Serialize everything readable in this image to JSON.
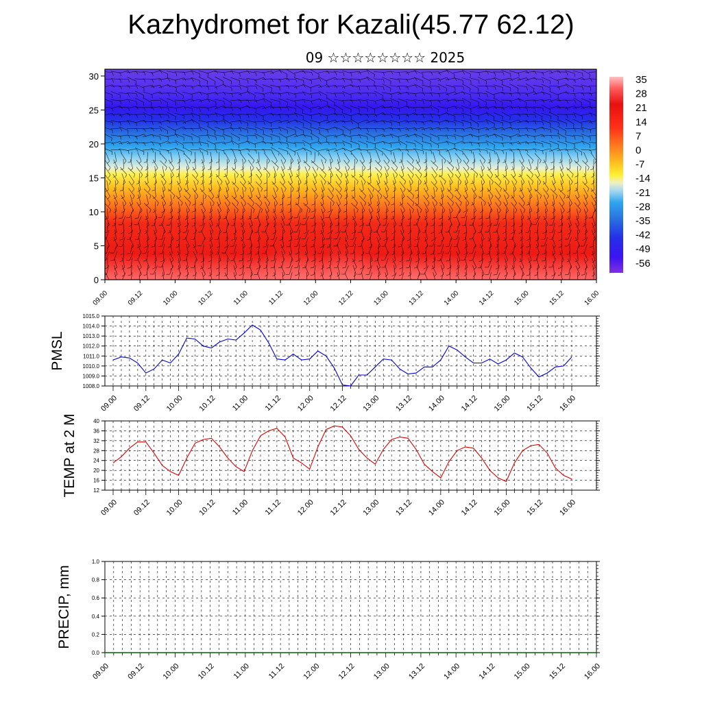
{
  "title": "Kazhydromet for Kazali(45.77 62.12)",
  "subtitle": "09 ☆☆☆☆☆☆☆☆ 2025",
  "time_labels": [
    "09.00",
    "09.12",
    "10.00",
    "10.12",
    "11.00",
    "11.12",
    "12.00",
    "12.12",
    "13.00",
    "13.12",
    "14.00",
    "14.12",
    "15.00",
    "15.12",
    "16.00"
  ],
  "colors": {
    "pmsl_line": "#0000dd",
    "temp_line": "#dd0000",
    "precip_line": "#006400"
  },
  "chart_data": [
    {
      "type": "heatmap",
      "description_key": "cross-section",
      "y_ticks": [
        "0",
        "5",
        "10",
        "15",
        "20",
        "25",
        "30"
      ],
      "ylim": [
        0,
        31
      ],
      "x_range_days": [
        9.0,
        16.0
      ],
      "colorbar_labels": [
        "35",
        "28",
        "21",
        "14",
        "7",
        "0",
        "-7",
        "-14",
        "-21",
        "-28",
        "-35",
        "-42",
        "-49",
        "-56"
      ],
      "colorbar_range": [
        -63,
        42
      ],
      "color_stops": [
        "#7b2be3",
        "#3f16f0",
        "#2424e8",
        "#2a6fe0",
        "#2aa8f0",
        "#a8d8f0",
        "#f0f0b0",
        "#fff030",
        "#ffc020",
        "#ff8020",
        "#ff3018",
        "#e81010",
        "#ff5a5a",
        "#ffb0b0"
      ]
    },
    {
      "type": "line",
      "ylabel": "PMSL",
      "y_ticks": [
        "1008.0",
        "1009.0",
        "1010.0",
        "1011.0",
        "1012.0",
        "1013.0",
        "1014.0",
        "1015.0"
      ],
      "ylim": [
        1008,
        1015
      ],
      "x_start": 9.0,
      "x_step_hours": 3,
      "values": [
        1010.6,
        1010.9,
        1010.8,
        1010.3,
        1009.3,
        1009.7,
        1010.6,
        1010.3,
        1011.2,
        1012.8,
        1012.7,
        1012.0,
        1011.8,
        1012.4,
        1012.7,
        1012.6,
        1013.3,
        1014.1,
        1013.6,
        1012.3,
        1010.7,
        1010.6,
        1011.2,
        1010.6,
        1010.7,
        1011.5,
        1011.0,
        1009.8,
        1008.1,
        1008.0,
        1009.1,
        1009.1,
        1009.9,
        1010.7,
        1010.6,
        1009.7,
        1009.2,
        1009.3,
        1009.9,
        1009.9,
        1010.6,
        1012.0,
        1011.6,
        1010.9,
        1010.3,
        1010.3,
        1010.7,
        1010.2,
        1010.6,
        1011.3,
        1010.9,
        1009.8,
        1008.9,
        1009.3,
        1009.9,
        1010.0,
        1010.9
      ]
    },
    {
      "type": "line",
      "ylabel": "TEMP at 2 M",
      "y_ticks": [
        "12",
        "16",
        "20",
        "24",
        "28",
        "32",
        "36",
        "40"
      ],
      "ylim": [
        12,
        40
      ],
      "x_start": 9.0,
      "x_step_hours": 3,
      "values": [
        23,
        25.5,
        29,
        31.5,
        31.5,
        27,
        22,
        19.5,
        18,
        25,
        31,
        32.5,
        33,
        29.5,
        25,
        21.5,
        19.5,
        28,
        34,
        36,
        37,
        33.5,
        25,
        23,
        20.5,
        29.5,
        36.5,
        38,
        37.5,
        34,
        28.5,
        25,
        22.5,
        28.5,
        32.5,
        33.5,
        33,
        28.5,
        22.5,
        19.5,
        17,
        23.5,
        28,
        29.5,
        29,
        25,
        20,
        17,
        15.5,
        23,
        28,
        30,
        30.5,
        27,
        21,
        18,
        16.5
      ]
    },
    {
      "type": "line",
      "ylabel": "PRECIP, mm",
      "y_ticks": [
        "0.0",
        "0.2",
        "0.4",
        "0.6",
        "0.8",
        "1.0"
      ],
      "ylim": [
        0,
        1
      ],
      "values": [
        0,
        0,
        0,
        0,
        0,
        0,
        0,
        0,
        0,
        0,
        0,
        0,
        0,
        0,
        0,
        0,
        0,
        0,
        0,
        0,
        0,
        0,
        0,
        0,
        0,
        0,
        0,
        0,
        0,
        0,
        0,
        0,
        0,
        0,
        0,
        0,
        0,
        0,
        0,
        0,
        0,
        0,
        0,
        0,
        0,
        0,
        0,
        0,
        0,
        0,
        0,
        0,
        0,
        0,
        0,
        0,
        0
      ]
    }
  ]
}
